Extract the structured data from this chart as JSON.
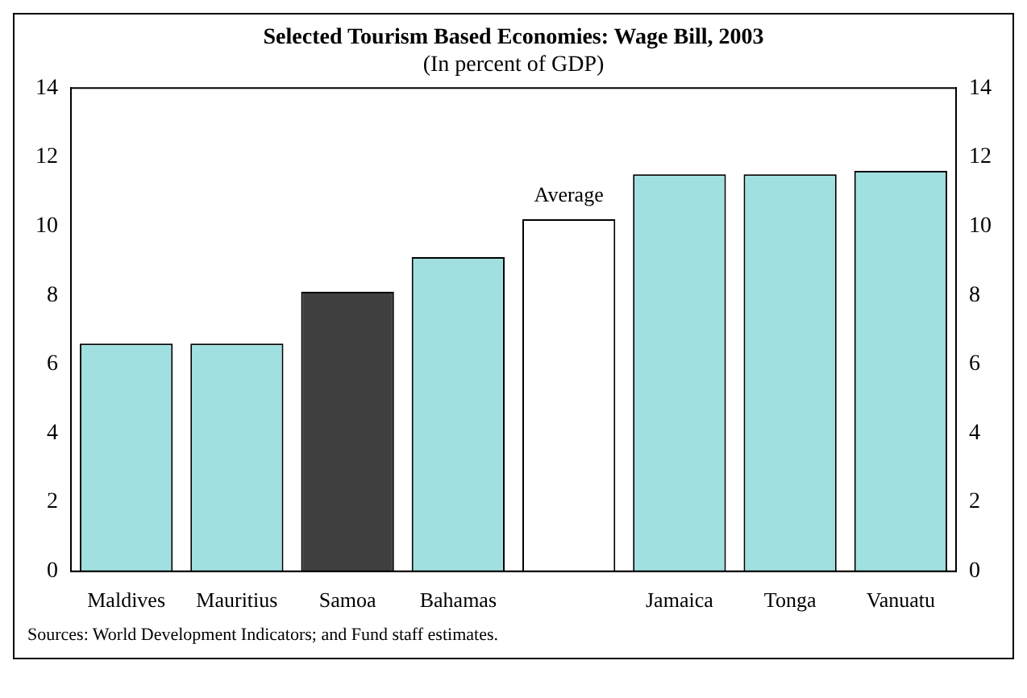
{
  "chart_data": {
    "type": "bar",
    "title": "Selected Tourism Based Economies: Wage Bill, 2003",
    "subtitle": "(In percent of GDP)",
    "categories": [
      "Maldives",
      "Mauritius",
      "Samoa",
      "Bahamas",
      null,
      "Jamaica",
      "Tonga",
      "Vanuatu"
    ],
    "values": [
      6.6,
      6.6,
      8.1,
      9.1,
      10.2,
      11.5,
      11.5,
      11.6
    ],
    "colors": [
      "#a0e0e0",
      "#a0e0e0",
      "#404040",
      "#a0e0e0",
      "#ffffff",
      "#a0e0e0",
      "#a0e0e0",
      "#a0e0e0"
    ],
    "value_labels": [
      null,
      null,
      null,
      null,
      "Average",
      null,
      null,
      null
    ],
    "ylim": [
      0,
      14
    ],
    "yticks": [
      0,
      2,
      4,
      6,
      8,
      10,
      12,
      14
    ],
    "y2lim": [
      0,
      14
    ],
    "y2ticks": [
      0,
      2,
      4,
      6,
      8,
      10,
      12,
      14
    ],
    "grid": false,
    "legend": false,
    "annotations": [
      "Sources: World Development Indicators; and Fund staff estimates."
    ]
  }
}
